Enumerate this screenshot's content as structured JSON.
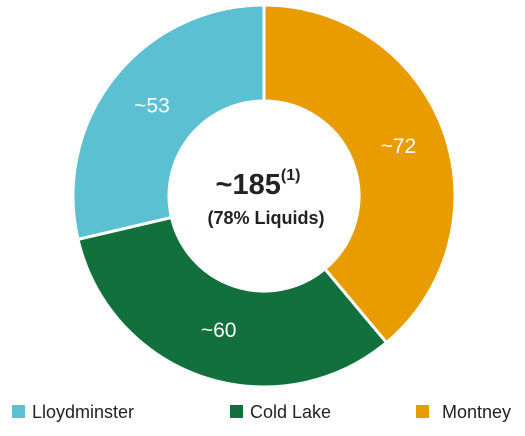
{
  "chart_data": {
    "type": "donut",
    "categories": [
      "Lloydminster",
      "Cold Lake",
      "Montney"
    ],
    "values": [
      53,
      60,
      72
    ],
    "value_labels": [
      "~53",
      "~60",
      "~72"
    ],
    "colors": [
      "#5bc0d1",
      "#12703c",
      "#e89c00"
    ],
    "center_label": "~185",
    "center_note": "(1)",
    "center_subtitle": "(78% Liquids)"
  }
}
